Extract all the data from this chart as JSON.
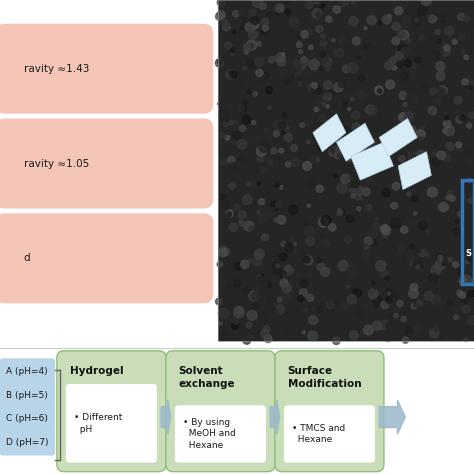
{
  "salmon_color": "#f5c6b8",
  "blue_box_color": "#b8d4e8",
  "green_color": "#c8ddb8",
  "white_inner_color": "#ffffff",
  "arrow_color": "#9ab8cc",
  "salmon_boxes": [
    {
      "text": "ravity ≈1.43"
    },
    {
      "text": "ravity ≈1.05"
    },
    {
      "text": "d"
    }
  ],
  "blue_boxes": [
    {
      "text": "A (pH=4)"
    },
    {
      "text": "B (pH=5)"
    },
    {
      "text": "C (pH=6)"
    },
    {
      "text": "D (pH=7)"
    }
  ],
  "green_boxes": [
    {
      "title": "Hydrogel",
      "bullet": "• Different\n  pH"
    },
    {
      "title": "Solvent\nexchange",
      "bullet": "• By using\n  MeOH and\n  Hexane"
    },
    {
      "title": "Surface\nModification",
      "bullet": "• TMCS and\n  Hexane"
    }
  ]
}
